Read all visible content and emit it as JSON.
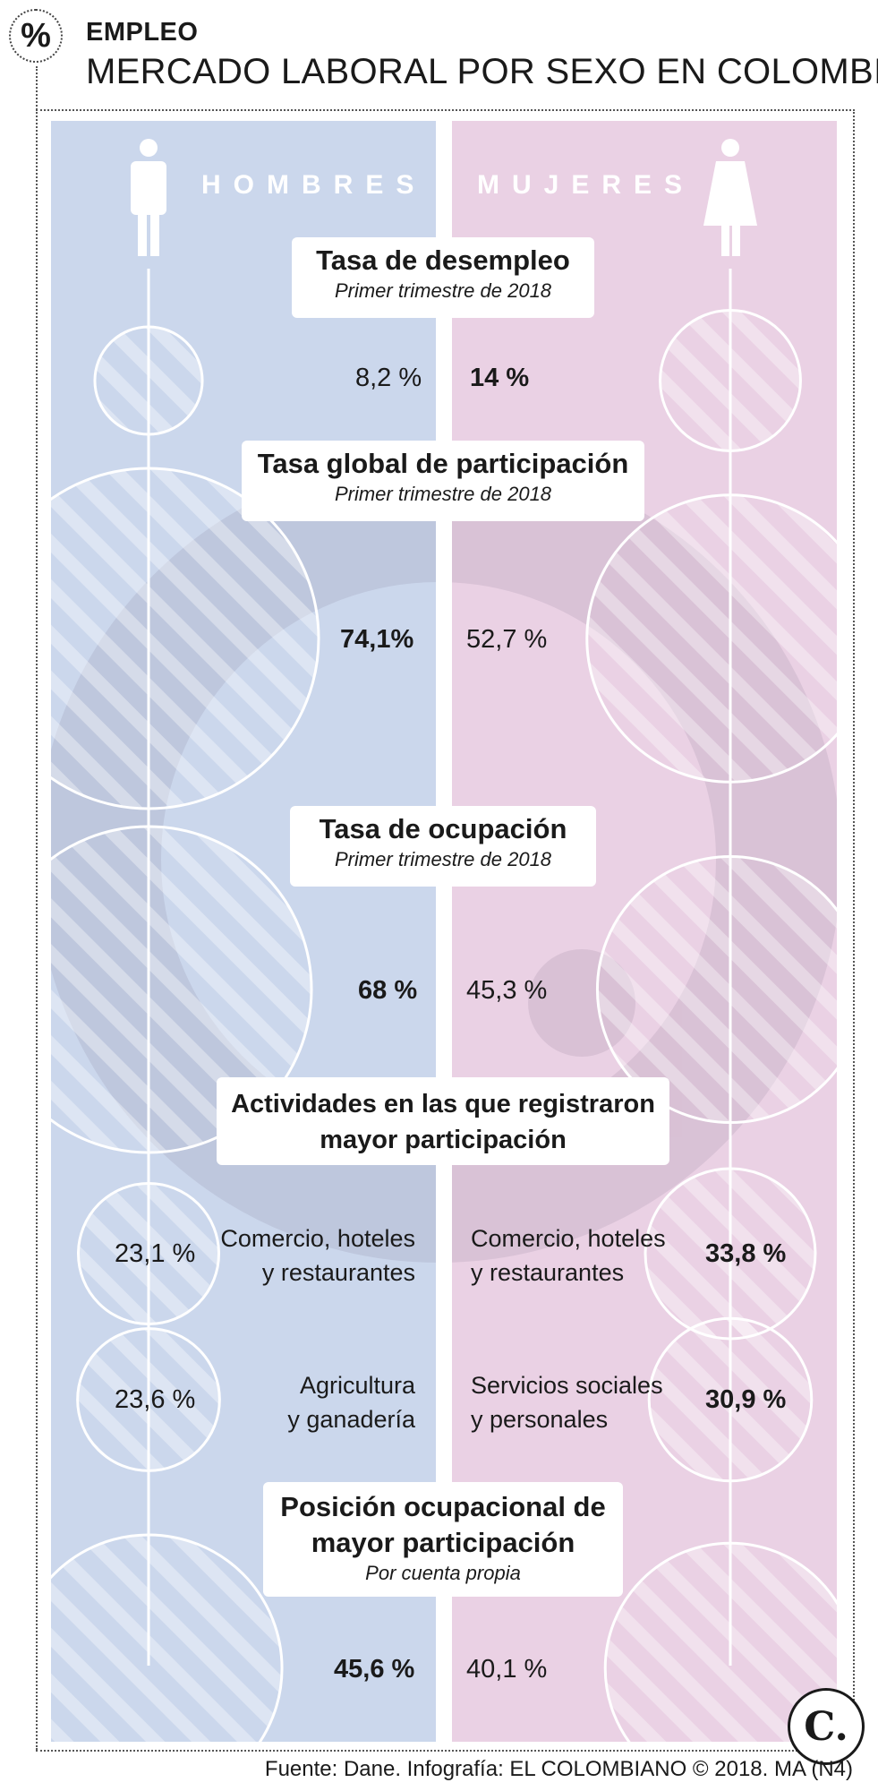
{
  "header": {
    "icon": "%",
    "kicker": "EMPLEO",
    "title": "MERCADO LABORAL POR SEXO EN COLOMBIA"
  },
  "labels": {
    "men": "HOMBRES",
    "women": "MUJERES"
  },
  "colors": {
    "men_panel": "#cbd7ec",
    "women_panel": "#ead1e4"
  },
  "chart_data": [
    {
      "type": "bar",
      "title": "Tasa de desempleo",
      "subtitle": "Primer trimestre de 2018",
      "categories": [
        "Hombres",
        "Mujeres"
      ],
      "values": [
        8.2,
        14
      ],
      "display": [
        "8,2 %",
        "14 %"
      ],
      "unit": "%"
    },
    {
      "type": "bar",
      "title": "Tasa global de participación",
      "subtitle": "Primer trimestre de 2018",
      "categories": [
        "Hombres",
        "Mujeres"
      ],
      "values": [
        74.1,
        52.7
      ],
      "display": [
        "74,1%",
        "52,7 %"
      ],
      "unit": "%"
    },
    {
      "type": "bar",
      "title": "Tasa de ocupación",
      "subtitle": "Primer trimestre de 2018",
      "categories": [
        "Hombres",
        "Mujeres"
      ],
      "values": [
        68,
        45.3
      ],
      "display": [
        "68 %",
        "45,3 %"
      ],
      "unit": "%"
    },
    {
      "type": "bar",
      "title": "Actividades en las que registraron mayor participación",
      "men": [
        {
          "activity_l1": "Comercio, hoteles",
          "activity_l2": "y restaurantes",
          "value": 23.1,
          "display": "23,1 %"
        },
        {
          "activity_l1": "Agricultura",
          "activity_l2": "y ganadería",
          "value": 23.6,
          "display": "23,6 %"
        }
      ],
      "women": [
        {
          "activity_l1": "Comercio, hoteles",
          "activity_l2": "y restaurantes",
          "value": 33.8,
          "display": "33,8 %"
        },
        {
          "activity_l1": "Servicios sociales",
          "activity_l2": "y personales",
          "value": 30.9,
          "display": "30,9 %"
        }
      ],
      "unit": "%"
    },
    {
      "type": "bar",
      "title_l1": "Posición ocupacional de",
      "title_l2": "mayor participación",
      "subtitle": "Por cuenta propia",
      "categories": [
        "Hombres",
        "Mujeres"
      ],
      "values": [
        45.6,
        40.1
      ],
      "display": [
        "45,6 %",
        "40,1 %"
      ],
      "unit": "%"
    }
  ],
  "footer": {
    "source": "Fuente: Dane. Infografía: EL COLOMBIANO © 2018. MA (N4)",
    "logo": "C."
  }
}
